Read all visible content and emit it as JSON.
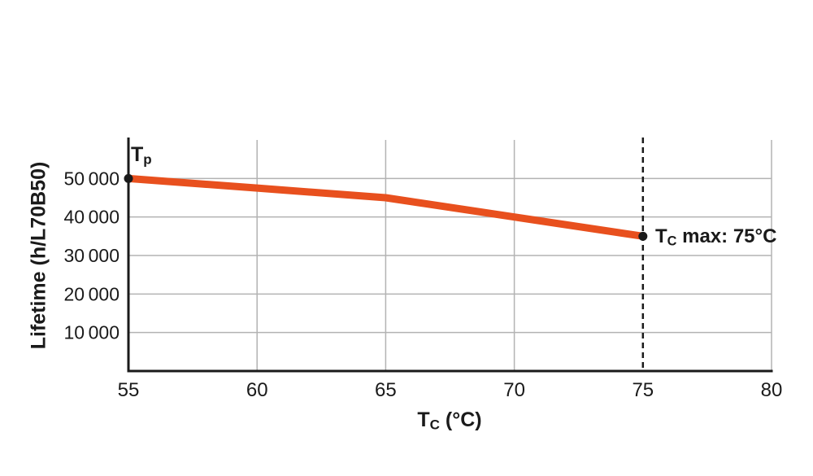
{
  "chart_data": {
    "type": "line",
    "x": [
      55,
      60,
      65,
      70,
      75
    ],
    "series": [
      {
        "name": "Lifetime",
        "values": [
          50000,
          47500,
          45000,
          40000,
          35000
        ]
      }
    ],
    "xlabel": {
      "main": "T",
      "sub": "C",
      "rest": " (°C)"
    },
    "ylabel": "Lifetime (h/L70B50)",
    "xlim": [
      55,
      80
    ],
    "ylim": [
      0,
      60000
    ],
    "xticks": [
      55,
      60,
      65,
      70,
      75,
      80
    ],
    "xtick_labels": [
      "55",
      "60",
      "65",
      "70",
      "75",
      "80"
    ],
    "yticks": [
      10000,
      20000,
      30000,
      40000,
      50000
    ],
    "ytick_labels": [
      "10 000",
      "20 000",
      "30 000",
      "40 000",
      "50 000"
    ],
    "grid": true,
    "legend": "none",
    "annotations": {
      "start": {
        "main": "T",
        "sub": "p",
        "rest": "",
        "x": 55,
        "y": 50000
      },
      "tc_max": {
        "main": "T",
        "sub": "C",
        "rest": " max: 75°C",
        "x": 75,
        "y": 35000
      }
    },
    "colors": {
      "line": "#E8501E",
      "axis": "#1A1A1A",
      "grid": "#B3B3B3",
      "text": "#1A1A1A",
      "background": "#FFFFFF"
    }
  }
}
